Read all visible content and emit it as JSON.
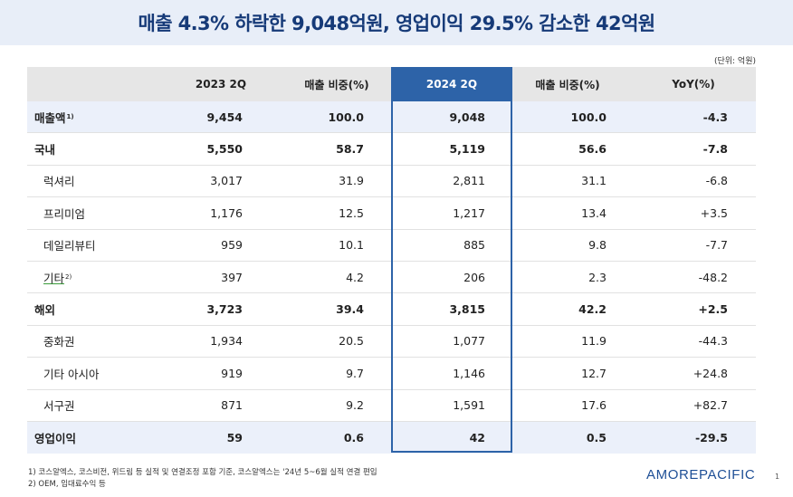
{
  "title": "매출 4.3% 하락한 9,048억원, 영업이익 29.5% 감소한 42억원",
  "unit_note": "(단위: 억원)",
  "table": {
    "headers": [
      "",
      "2023 2Q",
      "매출 비중(%)",
      "2024 2Q",
      "매출 비중(%)",
      "YoY(%)"
    ],
    "rows": [
      {
        "label": "매출액",
        "sup": "1)",
        "v2023": "9,454",
        "share2023": "100.0",
        "v2024": "9,048",
        "share2024": "100.0",
        "yoy": "-4.3"
      },
      {
        "label": "국내",
        "sup": "",
        "v2023": "5,550",
        "share2023": "58.7",
        "v2024": "5,119",
        "share2024": "56.6",
        "yoy": "-7.8"
      },
      {
        "label": "럭셔리",
        "sup": "",
        "v2023": "3,017",
        "share2023": "31.9",
        "v2024": "2,811",
        "share2024": "31.1",
        "yoy": "-6.8"
      },
      {
        "label": "프리미엄",
        "sup": "",
        "v2023": "1,176",
        "share2023": "12.5",
        "v2024": "1,217",
        "share2024": "13.4",
        "yoy": "+3.5"
      },
      {
        "label": "데일리뷰티",
        "sup": "",
        "v2023": "959",
        "share2023": "10.1",
        "v2024": "885",
        "share2024": "9.8",
        "yoy": "-7.7"
      },
      {
        "label": "기타",
        "sup": "2)",
        "v2023": "397",
        "share2023": "4.2",
        "v2024": "206",
        "share2024": "2.3",
        "yoy": "-48.2"
      },
      {
        "label": "해외",
        "sup": "",
        "v2023": "3,723",
        "share2023": "39.4",
        "v2024": "3,815",
        "share2024": "42.2",
        "yoy": "+2.5"
      },
      {
        "label": "중화권",
        "sup": "",
        "v2023": "1,934",
        "share2023": "20.5",
        "v2024": "1,077",
        "share2024": "11.9",
        "yoy": "-44.3"
      },
      {
        "label": "기타 아시아",
        "sup": "",
        "v2023": "919",
        "share2023": "9.7",
        "v2024": "1,146",
        "share2024": "12.7",
        "yoy": "+24.8"
      },
      {
        "label": "서구권",
        "sup": "",
        "v2023": "871",
        "share2023": "9.2",
        "v2024": "1,591",
        "share2024": "17.6",
        "yoy": "+82.7"
      },
      {
        "label": "영업이익",
        "sup": "",
        "v2023": "59",
        "share2023": "0.6",
        "v2024": "42",
        "share2024": "0.5",
        "yoy": "-29.5"
      }
    ]
  },
  "footnotes": [
    "1) 코스알엑스, 코스비전, 위드림 등 실적 및 연결조정 포함 기준, 코스알엑스는 '24년 5~6월 실적 연결 편입",
    "2) OEM, 임대료수익 등"
  ],
  "logo_text": "AMOREPACIFIC",
  "page_number": "1",
  "colors": {
    "title": "#163a78",
    "title_band": "#e8eef8",
    "highlight": "#2d63a8",
    "shaded_row": "#ebf0fa",
    "header_bg": "#e6e6e6"
  }
}
